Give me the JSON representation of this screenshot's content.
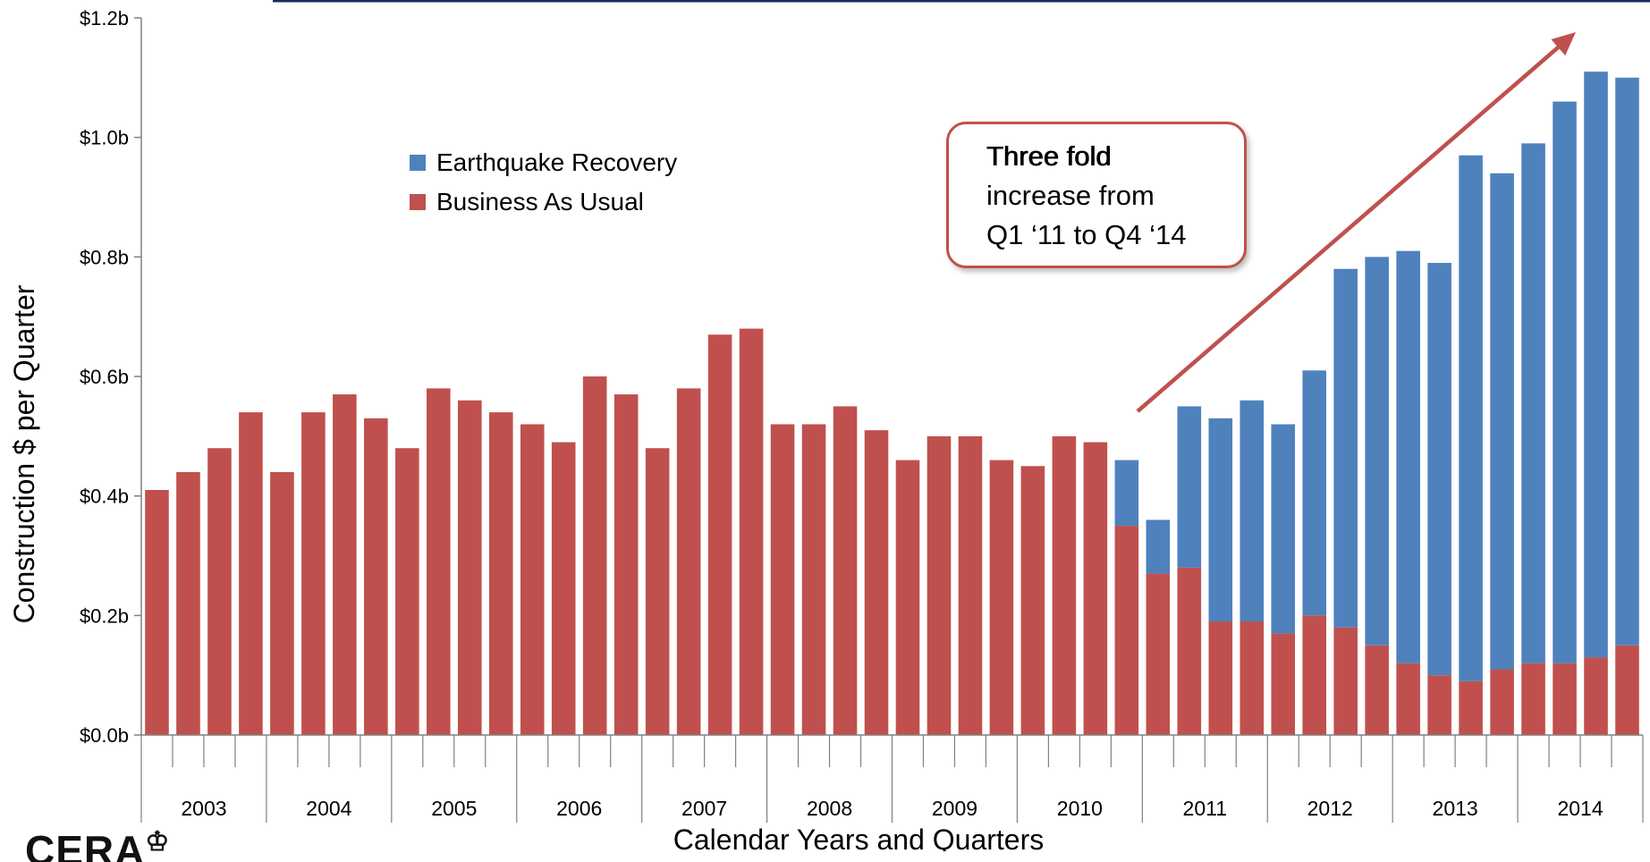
{
  "chart_data": {
    "type": "bar",
    "stacked": true,
    "ylabel": "Construction $  per Quarter",
    "xlabel": "Calendar Years and Quarters",
    "ylim": [
      0,
      1.2
    ],
    "yticks": [
      "$0.0b",
      "$0.2b",
      "$0.4b",
      "$0.6b",
      "$0.8b",
      "$1.0b",
      "$1.2b"
    ],
    "ytick_values": [
      0,
      0.2,
      0.4,
      0.6,
      0.8,
      1.0,
      1.2
    ],
    "years": [
      "2003",
      "2004",
      "2005",
      "2006",
      "2007",
      "2008",
      "2009",
      "2010",
      "2011",
      "2012",
      "2013",
      "2014"
    ],
    "quarters_per_year": 4,
    "legend_position": "top-left inside plot",
    "series": [
      {
        "name": "Business As Usual",
        "color": "#c0504d",
        "values": [
          0.41,
          0.44,
          0.48,
          0.54,
          0.44,
          0.54,
          0.57,
          0.53,
          0.48,
          0.58,
          0.56,
          0.54,
          0.52,
          0.49,
          0.6,
          0.57,
          0.48,
          0.58,
          0.67,
          0.68,
          0.52,
          0.52,
          0.55,
          0.51,
          0.46,
          0.5,
          0.5,
          0.46,
          0.45,
          0.5,
          0.49,
          0.35,
          0.27,
          0.28,
          0.19,
          0.19,
          0.17,
          0.2,
          0.18,
          0.15,
          0.12,
          0.1,
          0.09,
          0.11,
          0.12,
          0.12,
          0.13,
          0.15
        ]
      },
      {
        "name": "Earthquake Recovery",
        "color": "#4f81bd",
        "values": [
          0,
          0,
          0,
          0,
          0,
          0,
          0,
          0,
          0,
          0,
          0,
          0,
          0,
          0,
          0,
          0,
          0,
          0,
          0,
          0,
          0,
          0,
          0,
          0,
          0,
          0,
          0,
          0,
          0,
          0,
          0,
          0.11,
          0.09,
          0.27,
          0.34,
          0.37,
          0.35,
          0.41,
          0.6,
          0.65,
          0.69,
          0.69,
          0.88,
          0.83,
          0.87,
          0.94,
          0.98,
          0.95
        ]
      }
    ],
    "legend": [
      "Earthquake Recovery",
      "Business As Usual"
    ],
    "annotation": {
      "bold_line": "Three fold",
      "lines": [
        "increase from",
        "Q1 ‘11 to Q4 ‘14"
      ]
    }
  },
  "logo_text": "CERA",
  "colors": {
    "axis": "#808080",
    "arrow": "#c0504d",
    "top_rule": "#1f2a5c"
  }
}
